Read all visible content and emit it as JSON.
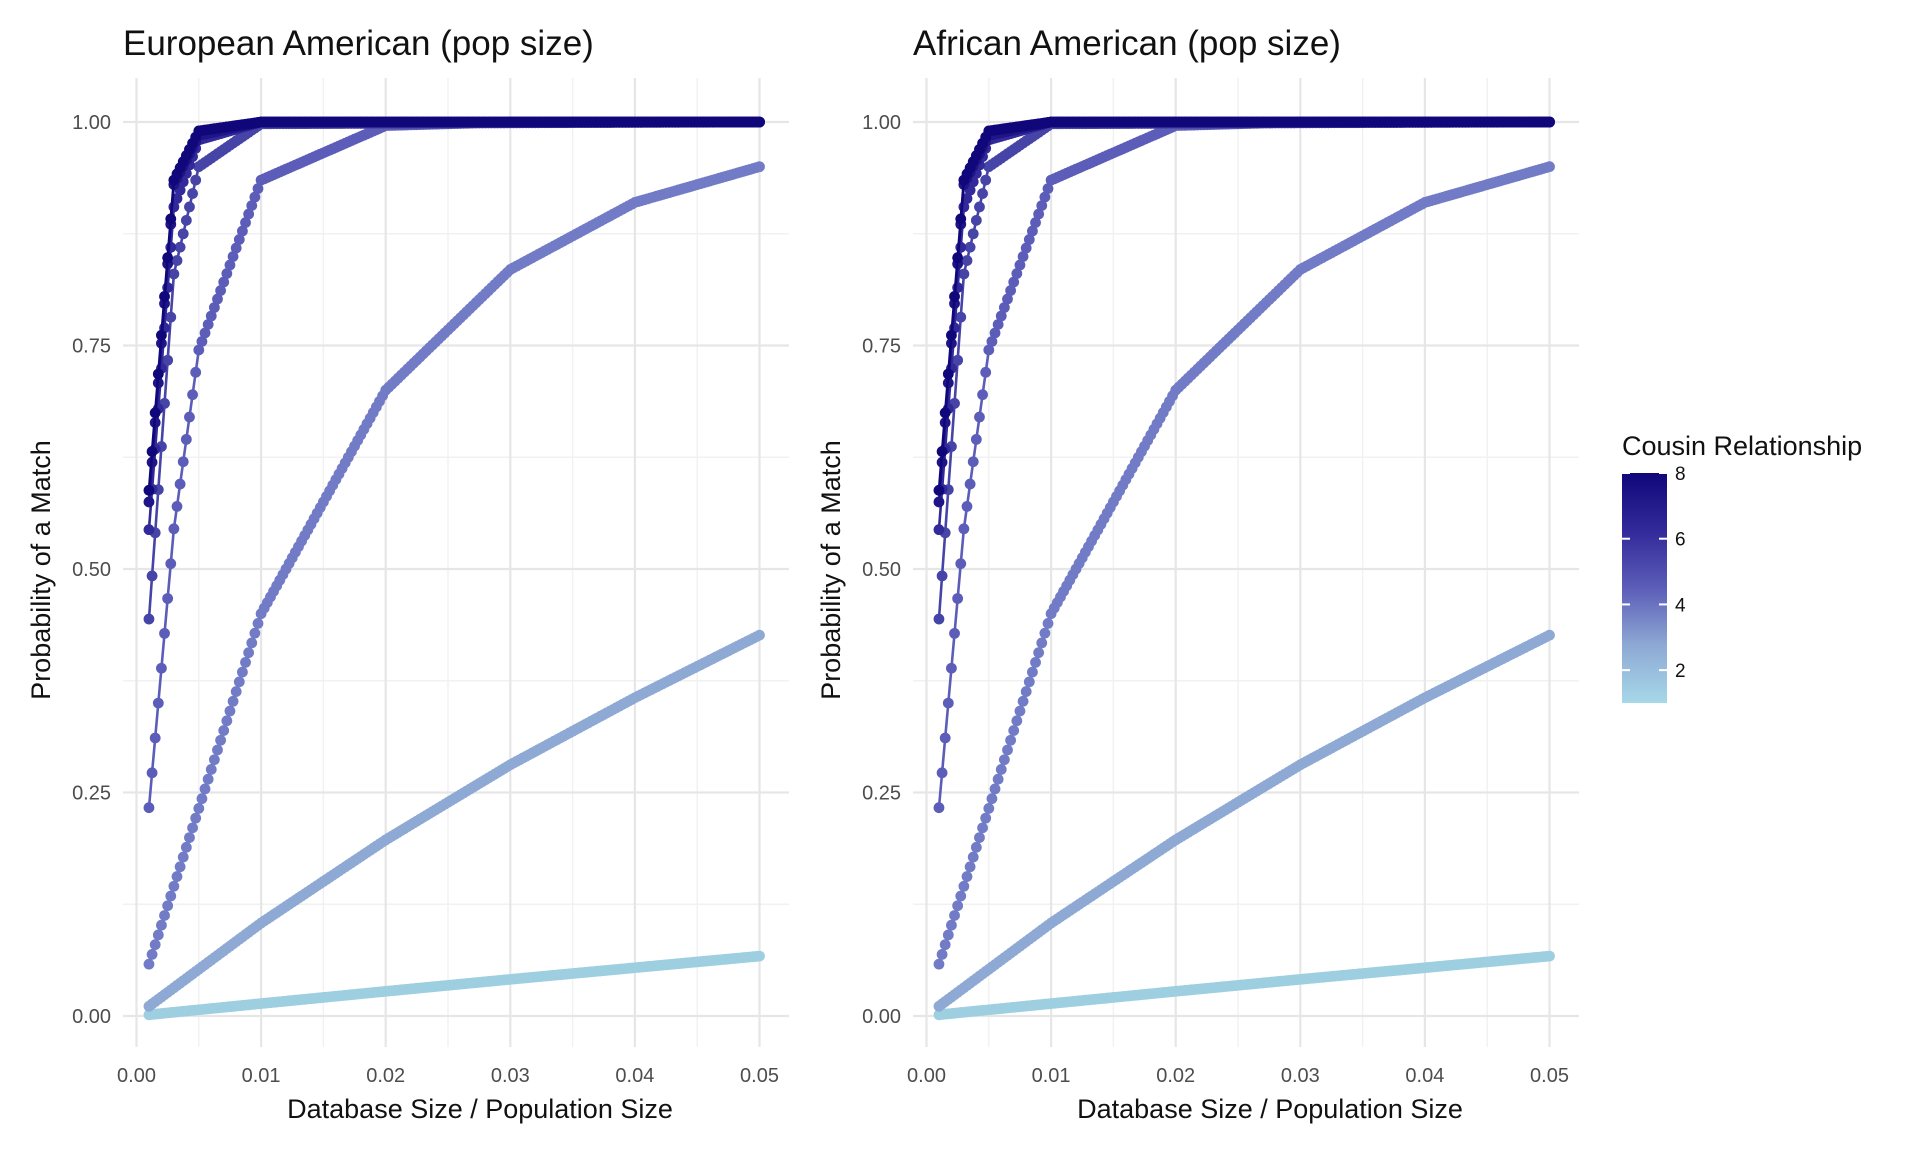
{
  "chart_data": [
    {
      "type": "line",
      "title": "European American (pop size)",
      "xlabel": "Database Size / Population Size",
      "ylabel": "Probability of a Match",
      "xlim": [
        0.0,
        0.05
      ],
      "ylim": [
        0.0,
        1.0
      ],
      "x_ticks": [
        "0.00",
        "0.01",
        "0.02",
        "0.03",
        "0.04",
        "0.05"
      ],
      "y_ticks": [
        "0.00",
        "0.25",
        "0.50",
        "0.75",
        "1.00"
      ],
      "grid": true,
      "markers": true,
      "x": {
        "start": 0.001,
        "end": 0.05,
        "step": 0.00025
      },
      "series": [
        {
          "relationship": 1,
          "color": "#9ecfe0",
          "points": [
            [
              0.001,
              0.0014
            ],
            [
              0.01,
              0.0139
            ],
            [
              0.02,
              0.0276
            ],
            [
              0.03,
              0.041
            ],
            [
              0.04,
              0.054
            ],
            [
              0.05,
              0.067
            ]
          ]
        },
        {
          "relationship": 2,
          "color": "#8ea9d4",
          "points": [
            [
              0.001,
              0.0109
            ],
            [
              0.01,
              0.104
            ],
            [
              0.02,
              0.197
            ],
            [
              0.03,
              0.281
            ],
            [
              0.04,
              0.356
            ],
            [
              0.05,
              0.426
            ]
          ]
        },
        {
          "relationship": 3,
          "color": "#717bc6",
          "points": [
            [
              0.001,
              0.058
            ],
            [
              0.01,
              0.45
            ],
            [
              0.02,
              0.7
            ],
            [
              0.03,
              0.835
            ],
            [
              0.04,
              0.91
            ],
            [
              0.05,
              0.95
            ]
          ]
        },
        {
          "relationship": 4,
          "color": "#5c5db8",
          "points": [
            [
              0.001,
              0.233
            ],
            [
              0.003,
              0.545
            ],
            [
              0.005,
              0.745
            ],
            [
              0.01,
              0.935
            ],
            [
              0.02,
              0.996
            ],
            [
              0.03,
              1.0
            ],
            [
              0.05,
              1.0
            ]
          ]
        },
        {
          "relationship": 5,
          "color": "#4644a6",
          "points": [
            [
              0.001,
              0.444
            ],
            [
              0.003,
              0.83
            ],
            [
              0.005,
              0.95
            ],
            [
              0.01,
              0.998
            ],
            [
              0.05,
              1.0
            ]
          ]
        },
        {
          "relationship": 6,
          "color": "#32299a",
          "points": [
            [
              0.001,
              0.544
            ],
            [
              0.003,
              0.905
            ],
            [
              0.005,
              0.98
            ],
            [
              0.01,
              1.0
            ],
            [
              0.05,
              1.0
            ]
          ]
        },
        {
          "relationship": 7,
          "color": "#201587",
          "points": [
            [
              0.001,
              0.575
            ],
            [
              0.003,
              0.93
            ],
            [
              0.005,
              0.985
            ],
            [
              0.01,
              1.0
            ],
            [
              0.05,
              1.0
            ]
          ]
        },
        {
          "relationship": 8,
          "color": "#10077a",
          "points": [
            [
              0.001,
              0.588
            ],
            [
              0.003,
              0.935
            ],
            [
              0.005,
              0.99
            ],
            [
              0.01,
              1.0
            ],
            [
              0.05,
              1.0
            ]
          ]
        }
      ]
    },
    {
      "type": "line",
      "title": "African American (pop size)",
      "xlabel": "Database Size / Population Size",
      "ylabel": "Probability of a Match",
      "xlim": [
        0.0,
        0.05
      ],
      "ylim": [
        0.0,
        1.0
      ],
      "x_ticks": [
        "0.00",
        "0.01",
        "0.02",
        "0.03",
        "0.04",
        "0.05"
      ],
      "y_ticks": [
        "0.00",
        "0.25",
        "0.50",
        "0.75",
        "1.00"
      ],
      "grid": true,
      "markers": true,
      "x": {
        "start": 0.001,
        "end": 0.05,
        "step": 0.00025
      },
      "series": [
        {
          "relationship": 1,
          "color": "#9ecfe0",
          "points": [
            [
              0.001,
              0.0014
            ],
            [
              0.01,
              0.0139
            ],
            [
              0.02,
              0.0276
            ],
            [
              0.03,
              0.041
            ],
            [
              0.04,
              0.054
            ],
            [
              0.05,
              0.067
            ]
          ]
        },
        {
          "relationship": 2,
          "color": "#8ea9d4",
          "points": [
            [
              0.001,
              0.0109
            ],
            [
              0.01,
              0.104
            ],
            [
              0.02,
              0.197
            ],
            [
              0.03,
              0.281
            ],
            [
              0.04,
              0.356
            ],
            [
              0.05,
              0.426
            ]
          ]
        },
        {
          "relationship": 3,
          "color": "#717bc6",
          "points": [
            [
              0.001,
              0.058
            ],
            [
              0.01,
              0.45
            ],
            [
              0.02,
              0.7
            ],
            [
              0.03,
              0.835
            ],
            [
              0.04,
              0.91
            ],
            [
              0.05,
              0.95
            ]
          ]
        },
        {
          "relationship": 4,
          "color": "#5c5db8",
          "points": [
            [
              0.001,
              0.233
            ],
            [
              0.003,
              0.545
            ],
            [
              0.005,
              0.745
            ],
            [
              0.01,
              0.935
            ],
            [
              0.02,
              0.996
            ],
            [
              0.03,
              1.0
            ],
            [
              0.05,
              1.0
            ]
          ]
        },
        {
          "relationship": 5,
          "color": "#4644a6",
          "points": [
            [
              0.001,
              0.444
            ],
            [
              0.003,
              0.83
            ],
            [
              0.005,
              0.95
            ],
            [
              0.01,
              0.998
            ],
            [
              0.05,
              1.0
            ]
          ]
        },
        {
          "relationship": 6,
          "color": "#32299a",
          "points": [
            [
              0.001,
              0.544
            ],
            [
              0.003,
              0.905
            ],
            [
              0.005,
              0.98
            ],
            [
              0.01,
              1.0
            ],
            [
              0.05,
              1.0
            ]
          ]
        },
        {
          "relationship": 7,
          "color": "#201587",
          "points": [
            [
              0.001,
              0.575
            ],
            [
              0.003,
              0.93
            ],
            [
              0.005,
              0.985
            ],
            [
              0.01,
              1.0
            ],
            [
              0.05,
              1.0
            ]
          ]
        },
        {
          "relationship": 8,
          "color": "#10077a",
          "points": [
            [
              0.001,
              0.588
            ],
            [
              0.003,
              0.935
            ],
            [
              0.005,
              0.99
            ],
            [
              0.01,
              1.0
            ],
            [
              0.05,
              1.0
            ]
          ]
        }
      ]
    }
  ],
  "legend": {
    "title": "Cousin Relationship",
    "position": "right",
    "range": [
      1,
      8
    ],
    "ticks": [
      {
        "value": 8,
        "label": "8"
      },
      {
        "value": 6,
        "label": "6"
      },
      {
        "value": 4,
        "label": "4"
      },
      {
        "value": 2,
        "label": "2"
      }
    ],
    "colors": [
      "#10077a",
      "#32299a",
      "#5c5db8",
      "#8ea9d4",
      "#a6d8e8"
    ]
  }
}
